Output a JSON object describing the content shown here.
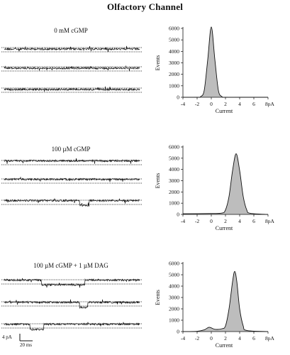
{
  "figure": {
    "title": "Olfactory Channel",
    "scale_bar": {
      "current_label": "4 pA",
      "time_label": "20 ms"
    }
  },
  "panels": [
    {
      "condition": "0 mM cGMP"
    },
    {
      "condition": "100 µM cGMP"
    },
    {
      "condition": "100 µM cGMP + 1 µM DAG"
    }
  ],
  "chart_data": [
    {
      "type": "area",
      "xlabel": "Current",
      "ylabel": "Events",
      "x_unit": "pA",
      "xlim": [
        -4,
        8
      ],
      "ylim": [
        0,
        6000
      ],
      "x_ticks": [
        -4,
        -2,
        0,
        2,
        4,
        6,
        8
      ],
      "y_ticks": [
        0,
        1000,
        2000,
        3000,
        4000,
        5000,
        6000
      ],
      "x": [
        -4,
        -2,
        -1.5,
        -1,
        -0.5,
        0,
        0.5,
        1,
        1.5,
        2,
        4,
        8
      ],
      "y": [
        0,
        0,
        60,
        600,
        3300,
        6200,
        3300,
        600,
        60,
        0,
        0,
        0
      ]
    },
    {
      "type": "area",
      "xlabel": "Current",
      "ylabel": "Events",
      "x_unit": "pA",
      "xlim": [
        -4,
        8
      ],
      "ylim": [
        0,
        6000
      ],
      "x_ticks": [
        -4,
        -2,
        0,
        2,
        4,
        6,
        8
      ],
      "y_ticks": [
        0,
        1000,
        2000,
        3000,
        4000,
        5000,
        6000
      ],
      "x": [
        -4,
        0,
        1.5,
        2,
        2.5,
        3,
        3.5,
        4,
        4.5,
        5,
        5.5,
        8
      ],
      "y": [
        60,
        80,
        120,
        400,
        1600,
        3900,
        5400,
        3900,
        1600,
        400,
        100,
        0
      ]
    },
    {
      "type": "area",
      "xlabel": "Current",
      "ylabel": "Events",
      "x_unit": "pA",
      "xlim": [
        -4,
        8
      ],
      "ylim": [
        0,
        6000
      ],
      "x_ticks": [
        -4,
        -2,
        0,
        2,
        4,
        6,
        8
      ],
      "y_ticks": [
        0,
        1000,
        2000,
        3000,
        4000,
        5000,
        6000
      ],
      "x": [
        -4,
        -2,
        -1,
        -0.3,
        0.5,
        1.5,
        2,
        2.5,
        3,
        3.3,
        3.6,
        4,
        4.5,
        5,
        8
      ],
      "y": [
        0,
        30,
        150,
        380,
        200,
        250,
        500,
        2000,
        4400,
        5300,
        4400,
        2000,
        500,
        100,
        0
      ]
    }
  ]
}
